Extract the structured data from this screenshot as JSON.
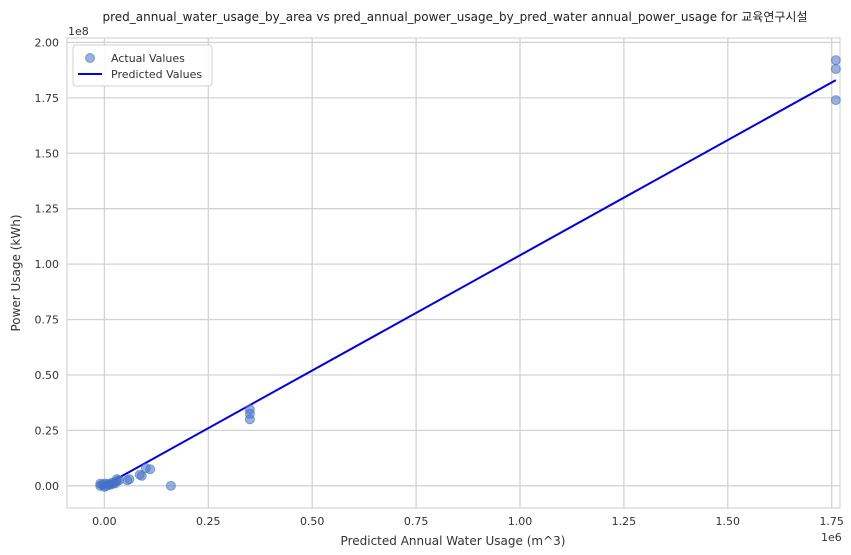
{
  "chart_data": {
    "type": "scatter",
    "title": "pred_annual_water_usage_by_area vs pred_annual_power_usage_by_pred_water annual_power_usage for 교육연구시설",
    "xlabel": "Predicted Annual Water Usage (m^3)",
    "ylabel": "Power Usage (kWh)",
    "x_offset_label": "1e6",
    "y_offset_label": "1e8",
    "xlim": [
      -0.09,
      1.77
    ],
    "ylim": [
      -0.1,
      2.02
    ],
    "x_ticks": [
      0.0,
      0.25,
      0.5,
      0.75,
      1.0,
      1.25,
      1.5,
      1.75
    ],
    "x_tick_labels": [
      "0.00",
      "0.25",
      "0.50",
      "0.75",
      "1.00",
      "1.25",
      "1.50",
      "1.75"
    ],
    "y_ticks": [
      0.0,
      0.25,
      0.5,
      0.75,
      1.0,
      1.25,
      1.5,
      1.75,
      2.0
    ],
    "y_tick_labels": [
      "0.00",
      "0.25",
      "0.50",
      "0.75",
      "1.00",
      "1.25",
      "1.50",
      "1.75",
      "2.00"
    ],
    "grid": true,
    "legend_position": "top-left",
    "colors": {
      "actual": "#4472c4",
      "predicted": "#0000ee",
      "grid": "#d3d3d3"
    },
    "series": [
      {
        "name": "Actual Values",
        "type": "scatter",
        "points": [
          [
            -0.01,
            0.01
          ],
          [
            -0.01,
            0.0
          ],
          [
            -0.005,
            0.005
          ],
          [
            0.0,
            -0.005
          ],
          [
            0.0,
            0.01
          ],
          [
            0.005,
            0.0
          ],
          [
            0.01,
            0.005
          ],
          [
            0.01,
            0.01
          ],
          [
            0.015,
            0.005
          ],
          [
            0.02,
            0.01
          ],
          [
            0.02,
            0.015
          ],
          [
            0.025,
            0.01
          ],
          [
            0.03,
            0.02
          ],
          [
            0.03,
            0.03
          ],
          [
            0.035,
            0.025
          ],
          [
            0.055,
            0.025
          ],
          [
            0.06,
            0.03
          ],
          [
            0.085,
            0.05
          ],
          [
            0.09,
            0.045
          ],
          [
            0.1,
            0.08
          ],
          [
            0.11,
            0.075
          ],
          [
            0.16,
            0.0
          ],
          [
            0.35,
            0.3
          ],
          [
            0.35,
            0.325
          ],
          [
            0.35,
            0.345
          ],
          [
            1.76,
            1.92
          ],
          [
            1.76,
            1.88
          ],
          [
            1.76,
            1.74
          ]
        ]
      },
      {
        "name": "Predicted Values",
        "type": "line",
        "points": [
          [
            -0.01,
            -0.01
          ],
          [
            1.76,
            1.83
          ]
        ]
      }
    ]
  }
}
